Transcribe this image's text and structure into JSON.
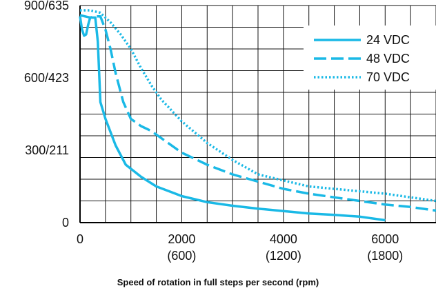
{
  "chart_data": {
    "type": "line",
    "title": "",
    "xlabel": "Speed of rotation in full steps per second (rpm)",
    "ylabel": "",
    "xlim": [
      0,
      7000
    ],
    "ylim": [
      0,
      900
    ],
    "grid": true,
    "legend_position": "top-right",
    "x_ticks": [
      {
        "value": 0,
        "line1": "0",
        "line2": ""
      },
      {
        "value": 2000,
        "line1": "2000",
        "line2": "(600)"
      },
      {
        "value": 4000,
        "line1": "4000",
        "line2": "(1200)"
      },
      {
        "value": 6000,
        "line1": "6000",
        "line2": "(1800)"
      }
    ],
    "y_ticks": [
      {
        "value": 0,
        "label": "0"
      },
      {
        "value": 300,
        "label": "300/211"
      },
      {
        "value": 600,
        "label": "600/423"
      },
      {
        "value": 900,
        "label": "900/635"
      }
    ],
    "series": [
      {
        "name": "24 VDC",
        "style": "solid",
        "color": "#1ab9e6",
        "x": [
          0,
          40,
          80,
          120,
          160,
          200,
          300,
          350,
          400,
          500,
          700,
          900,
          1200,
          1500,
          2000,
          2500,
          3000,
          3500,
          4000,
          4500,
          5000,
          5500,
          6000
        ],
        "y": [
          855,
          800,
          775,
          780,
          820,
          850,
          850,
          750,
          500,
          430,
          320,
          240,
          190,
          150,
          110,
          85,
          70,
          58,
          48,
          38,
          32,
          25,
          10
        ]
      },
      {
        "name": "48 VDC",
        "style": "dashed",
        "color": "#1ab9e6",
        "x": [
          0,
          100,
          200,
          300,
          400,
          500,
          600,
          700,
          850,
          1000,
          1200,
          1400,
          1600,
          2000,
          2500,
          3000,
          3500,
          4000,
          4500,
          5000,
          5500,
          6000,
          6500,
          7000
        ],
        "y": [
          860,
          855,
          850,
          855,
          855,
          800,
          720,
          620,
          500,
          430,
          400,
          380,
          350,
          290,
          240,
          200,
          170,
          140,
          120,
          105,
          90,
          75,
          65,
          50
        ]
      },
      {
        "name": "70 VDC",
        "style": "dotted",
        "color": "#1ab9e6",
        "x": [
          0,
          200,
          400,
          600,
          800,
          1000,
          1200,
          1400,
          1600,
          2000,
          2500,
          3000,
          3500,
          4000,
          4500,
          5000,
          5500,
          6000,
          6500,
          7000
        ],
        "y": [
          880,
          880,
          870,
          830,
          780,
          720,
          640,
          570,
          510,
          420,
          330,
          260,
          200,
          175,
          150,
          140,
          130,
          120,
          105,
          90
        ]
      }
    ]
  }
}
